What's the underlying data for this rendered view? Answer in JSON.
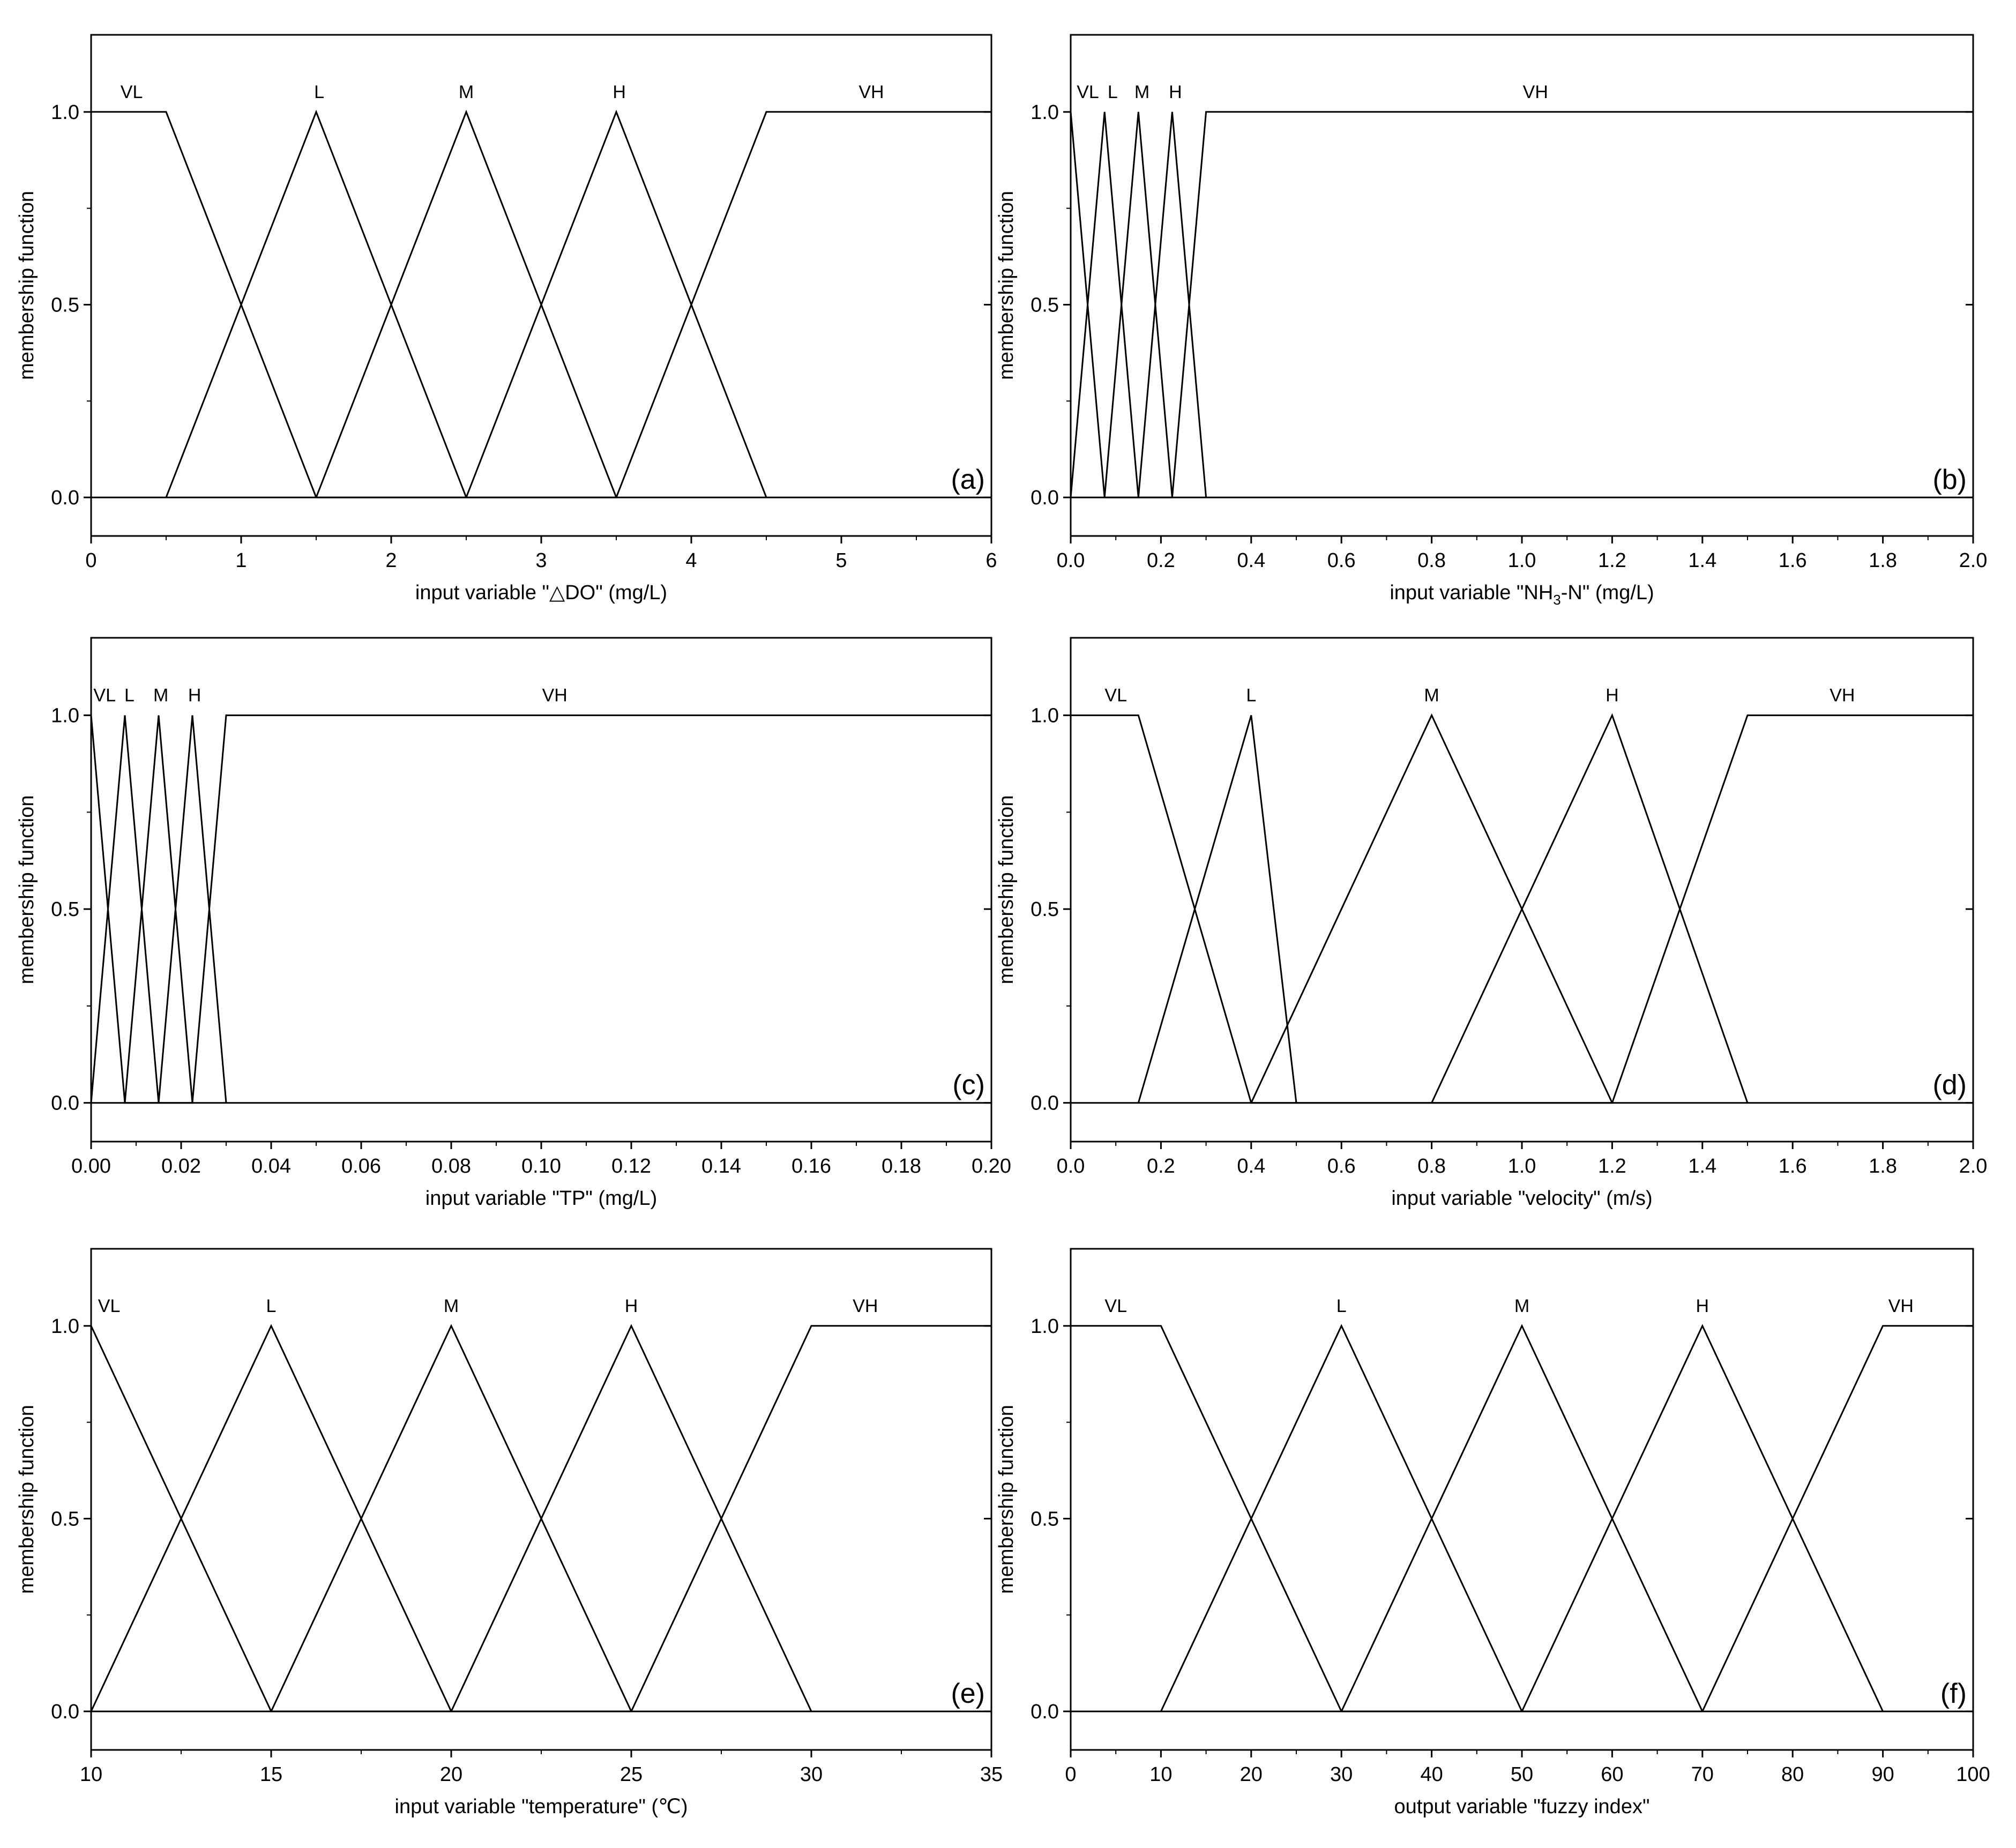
{
  "chart_data": [
    {
      "type": "line",
      "panel_label": "(a)",
      "xlabel": "input variable \"△DO\" (mg/L)",
      "ylabel": "membership function",
      "xlim": [
        0,
        6
      ],
      "ylim": [
        -0.1,
        1.2
      ],
      "xticks": [
        0,
        1,
        2,
        3,
        4,
        5,
        6
      ],
      "xtick_labels": [
        "0",
        "1",
        "2",
        "3",
        "4",
        "5",
        "6"
      ],
      "yticks": [
        0.0,
        0.5,
        1.0
      ],
      "ytick_labels": [
        "0.0",
        "0.5",
        "1.0"
      ],
      "grid": false,
      "series": [
        {
          "name": "VL",
          "x": [
            0,
            0.5,
            1.5,
            6
          ],
          "y": [
            1,
            1,
            0,
            0
          ]
        },
        {
          "name": "L",
          "x": [
            0.5,
            1.5,
            2.5
          ],
          "y": [
            0,
            1,
            0
          ]
        },
        {
          "name": "M",
          "x": [
            1.5,
            2.5,
            3.5
          ],
          "y": [
            0,
            1,
            0
          ]
        },
        {
          "name": "H",
          "x": [
            2.5,
            3.5,
            4.5
          ],
          "y": [
            0,
            1,
            0
          ]
        },
        {
          "name": "VH",
          "x": [
            0,
            3.5,
            4.5,
            6
          ],
          "y": [
            0,
            0,
            1,
            1
          ]
        }
      ],
      "labels": [
        {
          "text": "VL",
          "x": 0.27
        },
        {
          "text": "L",
          "x": 1.52
        },
        {
          "text": "M",
          "x": 2.5
        },
        {
          "text": "H",
          "x": 3.52
        },
        {
          "text": "VH",
          "x": 5.2
        }
      ]
    },
    {
      "type": "line",
      "panel_label": "(b)",
      "xlabel": "input variable \"NH₃-N\" (mg/L)",
      "xlabel_parts": {
        "pre": "input variable \"NH",
        "sub": "3",
        "post": "-N\" (mg/L)"
      },
      "ylabel": "membership function",
      "xlim": [
        0,
        2.0
      ],
      "ylim": [
        -0.1,
        1.2
      ],
      "xticks": [
        0,
        0.2,
        0.4,
        0.6,
        0.8,
        1.0,
        1.2,
        1.4,
        1.6,
        1.8,
        2.0
      ],
      "xtick_labels": [
        "0.0",
        "0.2",
        "0.4",
        "0.6",
        "0.8",
        "1.0",
        "1.2",
        "1.4",
        "1.6",
        "1.8",
        "2.0"
      ],
      "yticks": [
        0.0,
        0.5,
        1.0
      ],
      "ytick_labels": [
        "0.0",
        "0.5",
        "1.0"
      ],
      "grid": false,
      "series": [
        {
          "name": "VL",
          "x": [
            0,
            0.075,
            2.0
          ],
          "y": [
            1,
            0,
            0
          ]
        },
        {
          "name": "L",
          "x": [
            0,
            0.075,
            0.15
          ],
          "y": [
            0,
            1,
            0
          ]
        },
        {
          "name": "M",
          "x": [
            0.075,
            0.15,
            0.225
          ],
          "y": [
            0,
            1,
            0
          ]
        },
        {
          "name": "H",
          "x": [
            0.15,
            0.225,
            0.3
          ],
          "y": [
            0,
            1,
            0
          ]
        },
        {
          "name": "VH",
          "x": [
            0,
            0.225,
            0.3,
            2.0
          ],
          "y": [
            0,
            0,
            1,
            1
          ]
        }
      ],
      "labels": [
        {
          "text": "VL",
          "x": 0.038
        },
        {
          "text": "L",
          "x": 0.093
        },
        {
          "text": "M",
          "x": 0.158
        },
        {
          "text": "H",
          "x": 0.232
        },
        {
          "text": "VH",
          "x": 1.03
        }
      ]
    },
    {
      "type": "line",
      "panel_label": "(c)",
      "xlabel": "input variable \"TP\" (mg/L)",
      "ylabel": "membership function",
      "xlim": [
        0,
        0.2
      ],
      "ylim": [
        -0.1,
        1.2
      ],
      "xticks": [
        0,
        0.02,
        0.04,
        0.06,
        0.08,
        0.1,
        0.12,
        0.14,
        0.16,
        0.18,
        0.2
      ],
      "xtick_labels": [
        "0.00",
        "0.02",
        "0.04",
        "0.06",
        "0.08",
        "0.10",
        "0.12",
        "0.14",
        "0.16",
        "0.18",
        "0.20"
      ],
      "yticks": [
        0.0,
        0.5,
        1.0
      ],
      "ytick_labels": [
        "0.0",
        "0.5",
        "1.0"
      ],
      "grid": false,
      "series": [
        {
          "name": "VL",
          "x": [
            0,
            0.0075,
            0.2
          ],
          "y": [
            1,
            0,
            0
          ]
        },
        {
          "name": "L",
          "x": [
            0,
            0.0075,
            0.015
          ],
          "y": [
            0,
            1,
            0
          ]
        },
        {
          "name": "M",
          "x": [
            0.0075,
            0.015,
            0.0225
          ],
          "y": [
            0,
            1,
            0
          ]
        },
        {
          "name": "H",
          "x": [
            0.015,
            0.0225,
            0.03
          ],
          "y": [
            0,
            1,
            0
          ]
        },
        {
          "name": "VH",
          "x": [
            0,
            0.0225,
            0.03,
            0.2
          ],
          "y": [
            0,
            0,
            1,
            1
          ]
        }
      ],
      "labels": [
        {
          "text": "VL",
          "x": 0.003
        },
        {
          "text": "L",
          "x": 0.0085
        },
        {
          "text": "M",
          "x": 0.0155
        },
        {
          "text": "H",
          "x": 0.023
        },
        {
          "text": "VH",
          "x": 0.103
        }
      ]
    },
    {
      "type": "line",
      "panel_label": "(d)",
      "xlabel": "input variable \"velocity\" (m/s)",
      "ylabel": "membership function",
      "xlim": [
        0,
        2.0
      ],
      "ylim": [
        -0.1,
        1.2
      ],
      "xticks": [
        0,
        0.2,
        0.4,
        0.6,
        0.8,
        1.0,
        1.2,
        1.4,
        1.6,
        1.8,
        2.0
      ],
      "xtick_labels": [
        "0.0",
        "0.2",
        "0.4",
        "0.6",
        "0.8",
        "1.0",
        "1.2",
        "1.4",
        "1.6",
        "1.8",
        "2.0"
      ],
      "yticks": [
        0.0,
        0.5,
        1.0
      ],
      "ytick_labels": [
        "0.0",
        "0.5",
        "1.0"
      ],
      "grid": false,
      "series": [
        {
          "name": "VL",
          "x": [
            0,
            0.15,
            0.4,
            2.0
          ],
          "y": [
            1,
            1,
            0,
            0
          ]
        },
        {
          "name": "L",
          "x": [
            0.15,
            0.4,
            0.5
          ],
          "y": [
            0,
            1,
            0
          ]
        },
        {
          "name": "M",
          "x": [
            0.4,
            0.8,
            1.2
          ],
          "y": [
            0,
            1,
            0
          ]
        },
        {
          "name": "H",
          "x": [
            0.8,
            1.2,
            1.5
          ],
          "y": [
            0,
            1,
            0
          ]
        },
        {
          "name": "VH",
          "x": [
            0,
            1.2,
            1.5,
            2.0
          ],
          "y": [
            0,
            0,
            1,
            1
          ]
        }
      ],
      "labels": [
        {
          "text": "VL",
          "x": 0.1
        },
        {
          "text": "L",
          "x": 0.4
        },
        {
          "text": "M",
          "x": 0.8
        },
        {
          "text": "H",
          "x": 1.2
        },
        {
          "text": "VH",
          "x": 1.71
        }
      ]
    },
    {
      "type": "line",
      "panel_label": "(e)",
      "xlabel": "input variable \"temperature\" (℃)",
      "ylabel": "membership function",
      "xlim": [
        10,
        35
      ],
      "ylim": [
        -0.1,
        1.2
      ],
      "xticks": [
        10,
        15,
        20,
        25,
        30,
        35
      ],
      "xtick_labels": [
        "10",
        "15",
        "20",
        "25",
        "30",
        "35"
      ],
      "yticks": [
        0.0,
        0.5,
        1.0
      ],
      "ytick_labels": [
        "0.0",
        "0.5",
        "1.0"
      ],
      "grid": false,
      "series": [
        {
          "name": "VL",
          "x": [
            10,
            15,
            35
          ],
          "y": [
            1,
            0,
            0
          ]
        },
        {
          "name": "L",
          "x": [
            10,
            15,
            20
          ],
          "y": [
            0,
            1,
            0
          ]
        },
        {
          "name": "M",
          "x": [
            15,
            20,
            25
          ],
          "y": [
            0,
            1,
            0
          ]
        },
        {
          "name": "H",
          "x": [
            20,
            25,
            30
          ],
          "y": [
            0,
            1,
            0
          ]
        },
        {
          "name": "VH",
          "x": [
            10,
            25,
            30,
            35
          ],
          "y": [
            0,
            0,
            1,
            1
          ]
        }
      ],
      "labels": [
        {
          "text": "VL",
          "x": 10.5
        },
        {
          "text": "L",
          "x": 15
        },
        {
          "text": "M",
          "x": 20
        },
        {
          "text": "H",
          "x": 25
        },
        {
          "text": "VH",
          "x": 31.5
        }
      ]
    },
    {
      "type": "line",
      "panel_label": "(f)",
      "xlabel": "output variable \"fuzzy index\"",
      "ylabel": "membership function",
      "xlim": [
        0,
        100
      ],
      "ylim": [
        -0.1,
        1.2
      ],
      "xticks": [
        0,
        10,
        20,
        30,
        40,
        50,
        60,
        70,
        80,
        90,
        100
      ],
      "xtick_labels": [
        "0",
        "10",
        "20",
        "30",
        "40",
        "50",
        "60",
        "70",
        "80",
        "90",
        "100"
      ],
      "yticks": [
        0.0,
        0.5,
        1.0
      ],
      "ytick_labels": [
        "0.0",
        "0.5",
        "1.0"
      ],
      "grid": false,
      "series": [
        {
          "name": "VL",
          "x": [
            0,
            10,
            30,
            100
          ],
          "y": [
            1,
            1,
            0,
            0
          ]
        },
        {
          "name": "L",
          "x": [
            10,
            30,
            50
          ],
          "y": [
            0,
            1,
            0
          ]
        },
        {
          "name": "M",
          "x": [
            30,
            50,
            70
          ],
          "y": [
            0,
            1,
            0
          ]
        },
        {
          "name": "H",
          "x": [
            50,
            70,
            90
          ],
          "y": [
            0,
            1,
            0
          ]
        },
        {
          "name": "VH",
          "x": [
            0,
            70,
            90,
            100
          ],
          "y": [
            0,
            0,
            1,
            1
          ]
        }
      ],
      "labels": [
        {
          "text": "VL",
          "x": 5
        },
        {
          "text": "L",
          "x": 30
        },
        {
          "text": "M",
          "x": 50
        },
        {
          "text": "H",
          "x": 70
        },
        {
          "text": "VH",
          "x": 92
        }
      ]
    }
  ]
}
